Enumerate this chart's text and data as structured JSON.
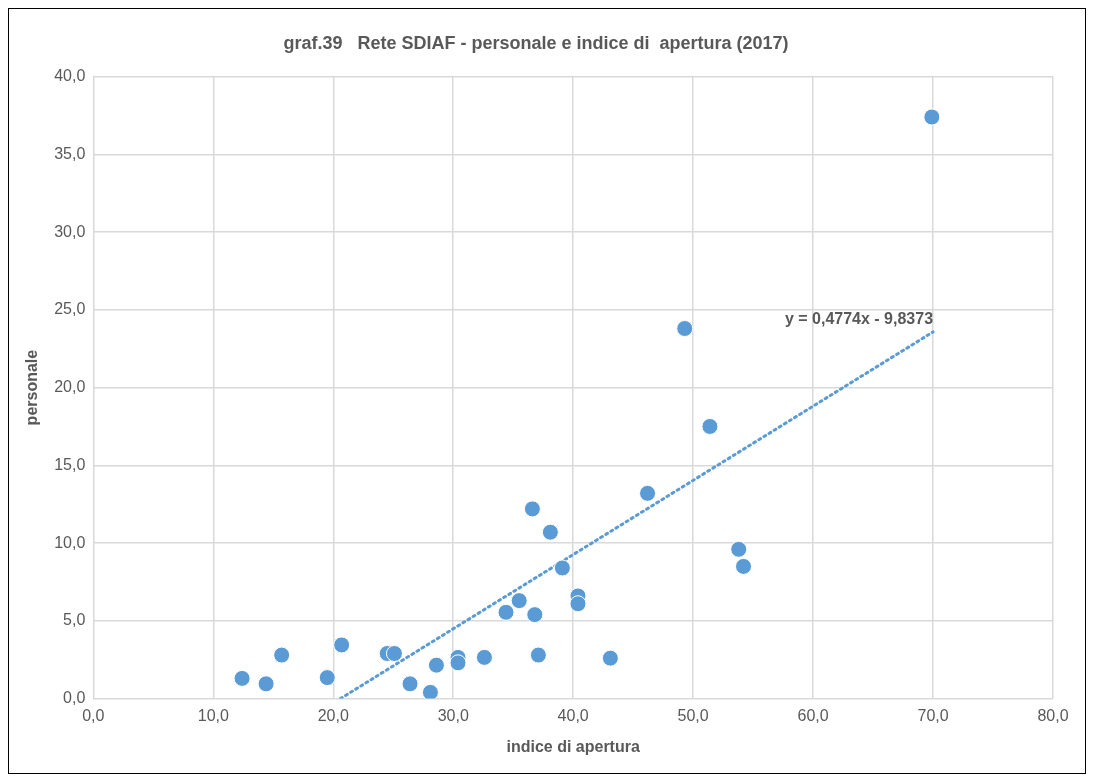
{
  "chart_data": {
    "type": "scatter",
    "title": "graf.39   Rete SDIAF - personale e indice di  apertura (2017)",
    "xlabel": "indice di apertura",
    "ylabel": "personale",
    "x": [
      12.4,
      14.4,
      15.7,
      19.5,
      20.7,
      24.5,
      25.1,
      26.4,
      28.1,
      28.6,
      30.4,
      30.4,
      32.6,
      34.4,
      35.5,
      36.6,
      36.8,
      37.1,
      38.1,
      39.1,
      40.4,
      40.4,
      43.1,
      46.2,
      49.3,
      51.4,
      53.8,
      54.2,
      69.9
    ],
    "series": [
      {
        "color": "#5b9bd5",
        "marker": "circle",
        "values": [
          1.3,
          0.95,
          2.8,
          1.35,
          3.45,
          2.9,
          2.9,
          0.95,
          0.4,
          2.15,
          2.65,
          2.3,
          2.65,
          5.55,
          6.3,
          12.2,
          5.4,
          2.8,
          10.7,
          8.4,
          6.6,
          6.1,
          2.6,
          13.2,
          23.8,
          17.5,
          9.6,
          8.5,
          37.4
        ]
      },
      {
        "type": "line",
        "color": "#5b9bd5",
        "line_style": "dotted",
        "marker": "none",
        "x": [
          20.6,
          70
        ],
        "values": [
          0,
          23.58
        ]
      }
    ],
    "annotations": [
      "y = 0,4774x - 9,8373"
    ],
    "xlim": [
      0,
      80
    ],
    "xticks": [
      {
        "value": 0,
        "label": "0,0"
      },
      {
        "value": 10,
        "label": "10,0"
      },
      {
        "value": 20,
        "label": "20,0"
      },
      {
        "value": 30,
        "label": "30,0"
      },
      {
        "value": 40,
        "label": "40,0"
      },
      {
        "value": 50,
        "label": "50,0"
      },
      {
        "value": 60,
        "label": "60,0"
      },
      {
        "value": 70,
        "label": "70,0"
      },
      {
        "value": 80,
        "label": "80,0"
      }
    ],
    "ylim": [
      0,
      40
    ],
    "yticks": [
      {
        "value": 0,
        "label": "0,0"
      },
      {
        "value": 5,
        "label": "5,0"
      },
      {
        "value": 10,
        "label": "10,0"
      },
      {
        "value": 15,
        "label": "15,0"
      },
      {
        "value": 20,
        "label": "20,0"
      },
      {
        "value": 25,
        "label": "25,0"
      },
      {
        "value": 30,
        "label": "30,0"
      },
      {
        "value": 35,
        "label": "35,0"
      },
      {
        "value": 40,
        "label": "40,0"
      }
    ],
    "grid": true,
    "legend": false
  }
}
